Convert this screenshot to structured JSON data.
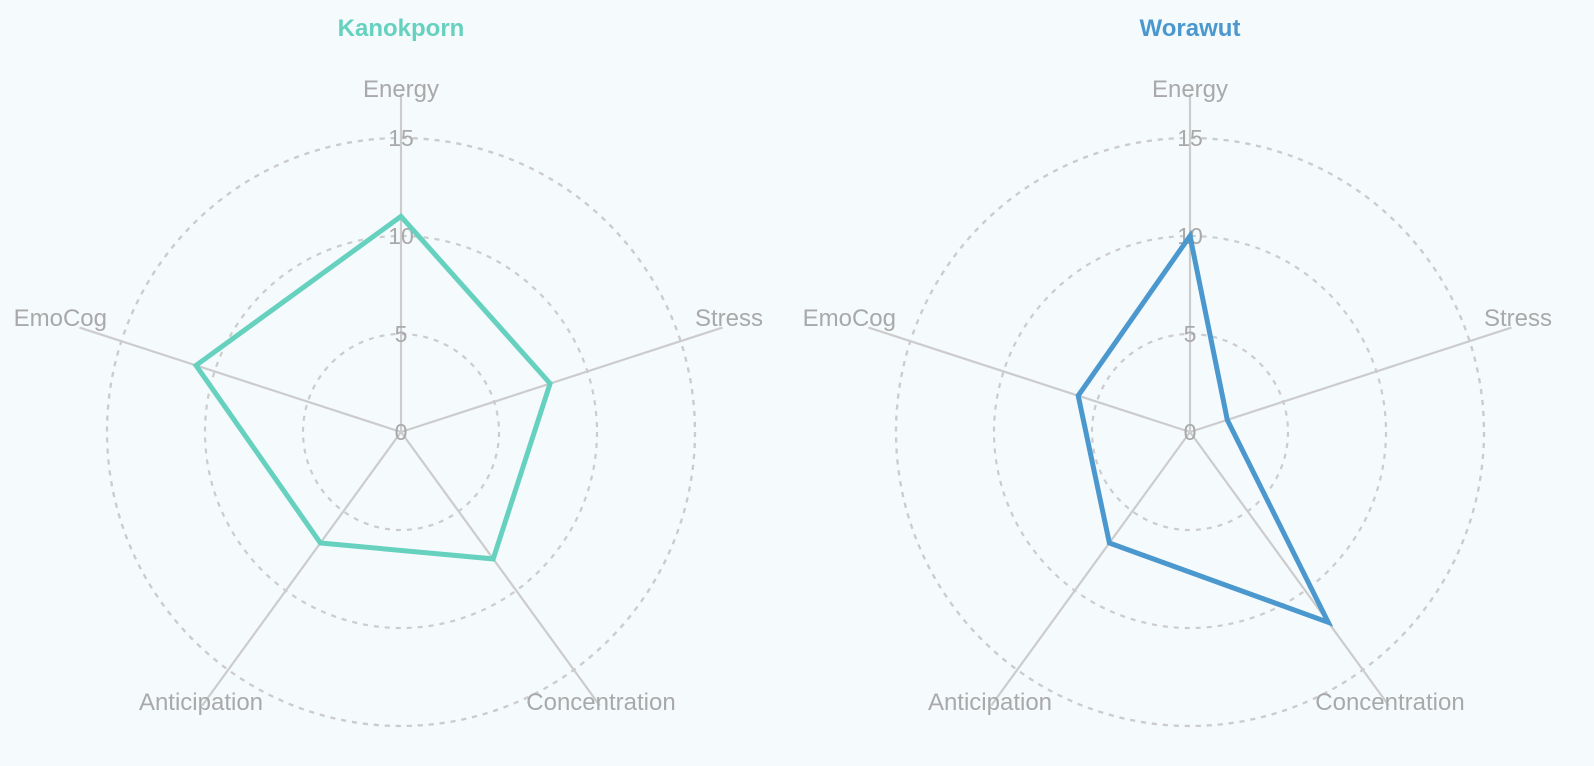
{
  "chart_data": [
    {
      "type": "radar",
      "title": "Kanokporn",
      "color": "#66d1bf",
      "axes": [
        "Energy",
        "Stress",
        "Concentration",
        "Anticipation",
        "EmoCog"
      ],
      "ticks": [
        "0",
        "5",
        "10",
        "15"
      ],
      "rlim": [
        0,
        15
      ],
      "values": [
        11,
        8,
        8,
        7,
        11
      ],
      "grid": true,
      "grid_style": "dashed"
    },
    {
      "type": "radar",
      "title": "Worawut",
      "color": "#4b98cf",
      "axes": [
        "Energy",
        "Stress",
        "Concentration",
        "Anticipation",
        "EmoCog"
      ],
      "ticks": [
        "0",
        "5",
        "10",
        "15"
      ],
      "rlim": [
        0,
        15
      ],
      "values": [
        10,
        2,
        12,
        7,
        6
      ],
      "grid": true,
      "grid_style": "dashed"
    }
  ]
}
